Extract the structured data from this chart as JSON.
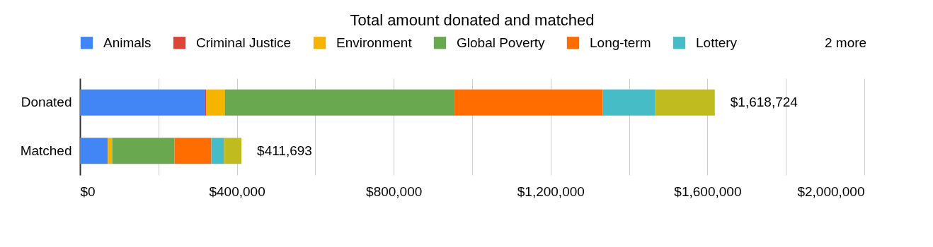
{
  "chart_data": {
    "type": "bar",
    "orientation": "horizontal",
    "stacked": true,
    "title": "Total amount donated and matched",
    "categories": [
      "Donated",
      "Matched"
    ],
    "series": [
      {
        "name": "Animals",
        "color": "#4285f4",
        "values": [
          318000,
          71000
        ]
      },
      {
        "name": "Criminal Justice",
        "color": "#db4437",
        "values": [
          4000,
          0
        ]
      },
      {
        "name": "Environment",
        "color": "#f4b400",
        "values": [
          47000,
          11000
        ]
      },
      {
        "name": "Global Poverty",
        "color": "#6aa84f",
        "values": [
          586000,
          159000
        ]
      },
      {
        "name": "Long-term",
        "color": "#ff6d01",
        "values": [
          378000,
          94000
        ]
      },
      {
        "name": "Lottery",
        "color": "#46bdc6",
        "values": [
          134000,
          32000
        ]
      },
      {
        "color": "#c0bc20",
        "values": [
          151724,
          44693
        ]
      }
    ],
    "totals": [
      "$1,618,724",
      "$411,693"
    ],
    "xlim": [
      0,
      2000000
    ],
    "xticks": [
      {
        "value": 0,
        "label": "$0"
      },
      {
        "value": 200000,
        "label": null
      },
      {
        "value": 400000,
        "label": "$400,000"
      },
      {
        "value": 600000,
        "label": null
      },
      {
        "value": 800000,
        "label": "$800,000"
      },
      {
        "value": 1000000,
        "label": null
      },
      {
        "value": 1200000,
        "label": "$1,200,000"
      },
      {
        "value": 1400000,
        "label": null
      },
      {
        "value": 1600000,
        "label": "$1,600,000"
      },
      {
        "value": 1800000,
        "label": null
      },
      {
        "value": 2000000,
        "label": "$2,000,000"
      }
    ],
    "grid": "x",
    "legend": "top",
    "annotations": [
      "2 more"
    ]
  }
}
